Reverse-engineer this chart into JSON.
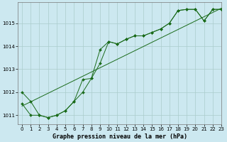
{
  "background_color": "#cce8f0",
  "grid_color": "#aacccc",
  "line_color": "#1a6b1a",
  "title": "Graphe pression niveau de la mer (hPa)",
  "xlim": [
    -0.5,
    23
  ],
  "ylim": [
    1010.6,
    1015.9
  ],
  "xticks": [
    0,
    1,
    2,
    3,
    4,
    5,
    6,
    7,
    8,
    9,
    10,
    11,
    12,
    13,
    14,
    15,
    16,
    17,
    18,
    19,
    20,
    21,
    22,
    23
  ],
  "yticks": [
    1011,
    1012,
    1013,
    1014,
    1015
  ],
  "series1_x": [
    0,
    1,
    2,
    3,
    4,
    5,
    6,
    7,
    8,
    9,
    10,
    11,
    12,
    13,
    14,
    15,
    16,
    17,
    18,
    19,
    20,
    21,
    22,
    23
  ],
  "series1_y": [
    1012.0,
    1011.6,
    1011.0,
    1010.9,
    1011.0,
    1011.2,
    1011.6,
    1012.0,
    1012.6,
    1013.85,
    1014.2,
    1014.1,
    1014.3,
    1014.45,
    1014.45,
    1014.6,
    1014.75,
    1015.0,
    1015.55,
    1015.6,
    1015.6,
    1015.1,
    1015.6,
    1015.6
  ],
  "series2_x": [
    0,
    1,
    2,
    3,
    4,
    5,
    6,
    7,
    8,
    9,
    10,
    11,
    12,
    13,
    14,
    15,
    16,
    17,
    18,
    19,
    20,
    21,
    22,
    23
  ],
  "series2_y": [
    1011.5,
    1011.0,
    1011.0,
    1010.9,
    1011.0,
    1011.2,
    1011.6,
    1012.55,
    1012.6,
    1013.25,
    1014.2,
    1014.1,
    1014.3,
    1014.45,
    1014.45,
    1014.6,
    1014.75,
    1015.0,
    1015.55,
    1015.6,
    1015.6,
    1015.1,
    1015.6,
    1015.6
  ],
  "series3_x": [
    0,
    23
  ],
  "series3_y": [
    1011.4,
    1015.65
  ],
  "tick_fontsize": 5,
  "xlabel_fontsize": 6,
  "marker_size": 2.0
}
